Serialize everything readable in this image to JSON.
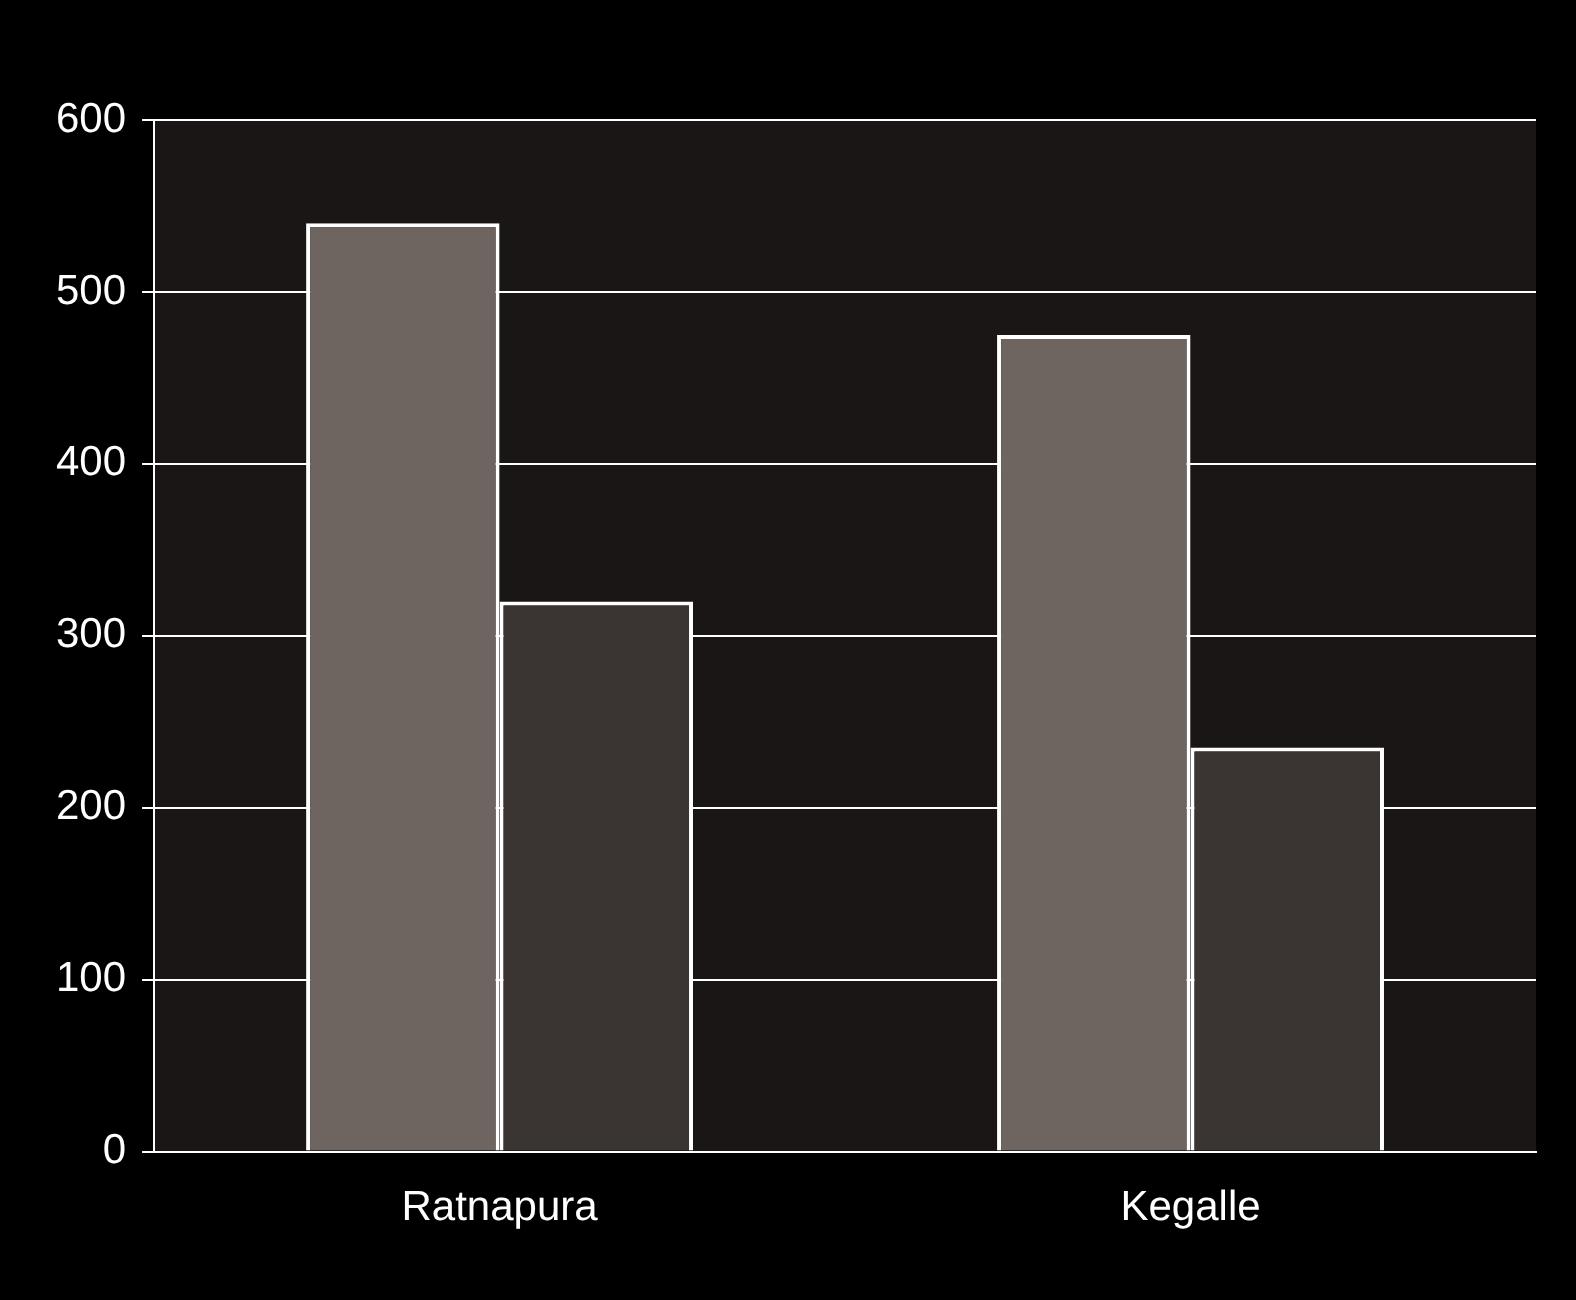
{
  "chart_data": {
    "type": "bar",
    "categories": [
      "Ratnapura",
      "Kegalle"
    ],
    "series": [
      {
        "color": "#6e6460",
        "values": [
          540,
          475
        ]
      },
      {
        "color": "#3a3533",
        "values": [
          320,
          235
        ]
      }
    ],
    "ylim": [
      0,
      600
    ],
    "yticks": [
      0,
      100,
      200,
      300,
      400,
      500,
      600
    ],
    "grid": "y",
    "legend": false
  }
}
